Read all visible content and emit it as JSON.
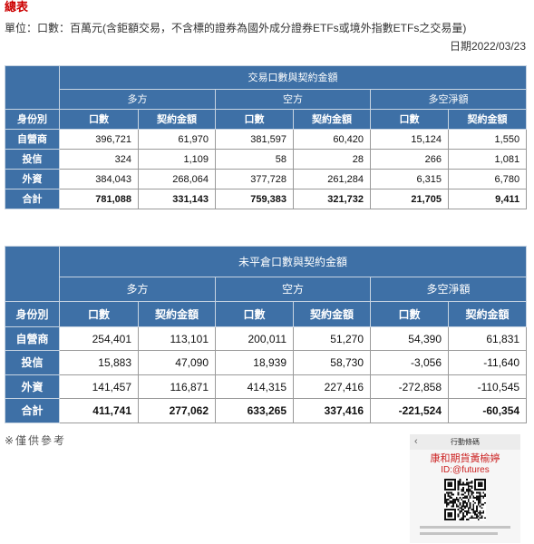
{
  "page": {
    "title": "總表",
    "unit_note": "單位：口數：百萬元(含鉅額交易，不含標的證券為國外成分證券ETFs或境外指數ETFs之交易量)",
    "date": "日期2022/03/23",
    "footnote": "※僅供參考"
  },
  "colors": {
    "title_text": "#cc0000",
    "header_background": "#3e70a6",
    "header_text": "#ffffff",
    "cell_border": "#9a9a9a",
    "qr_name_text": "#cc2222"
  },
  "table1": {
    "caption": "交易口數與契約金額",
    "groups": [
      "多方",
      "空方",
      "多空淨額"
    ],
    "columns": [
      "身份別",
      "口數",
      "契約金額",
      "口數",
      "契約金額",
      "口數",
      "契約金額"
    ],
    "rows": [
      {
        "label": "自營商",
        "values": [
          "396,721",
          "61,970",
          "381,597",
          "60,420",
          "15,124",
          "1,550"
        ]
      },
      {
        "label": "投信",
        "values": [
          "324",
          "1,109",
          "58",
          "28",
          "266",
          "1,081"
        ]
      },
      {
        "label": "外資",
        "values": [
          "384,043",
          "268,064",
          "377,728",
          "261,284",
          "6,315",
          "6,780"
        ]
      },
      {
        "label": "合計",
        "values": [
          "781,088",
          "331,143",
          "759,383",
          "321,732",
          "21,705",
          "9,411"
        ]
      }
    ]
  },
  "table2": {
    "caption": "未平倉口數與契約金額",
    "groups": [
      "多方",
      "空方",
      "多空淨額"
    ],
    "columns": [
      "身份別",
      "口數",
      "契約金額",
      "口數",
      "契約金額",
      "口數",
      "契約金額"
    ],
    "rows": [
      {
        "label": "自營商",
        "values": [
          "254,401",
          "113,101",
          "200,011",
          "51,270",
          "54,390",
          "61,831"
        ]
      },
      {
        "label": "投信",
        "values": [
          "15,883",
          "47,090",
          "18,939",
          "58,730",
          "-3,056",
          "-11,640"
        ]
      },
      {
        "label": "外資",
        "values": [
          "141,457",
          "116,871",
          "414,315",
          "227,416",
          "-272,858",
          "-110,545"
        ]
      },
      {
        "label": "合計",
        "values": [
          "411,741",
          "277,062",
          "633,265",
          "337,416",
          "-221,524",
          "-60,354"
        ]
      }
    ]
  },
  "qr_panel": {
    "back_icon": "chevron-left-icon",
    "header": "行動條碼",
    "name": "康和期貨黃榆婷",
    "id": "ID:@futures",
    "qr_icon": "qr-code"
  }
}
